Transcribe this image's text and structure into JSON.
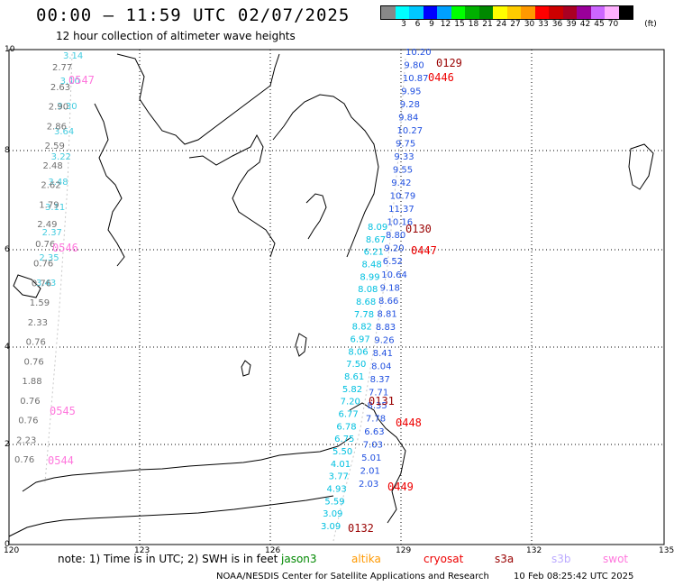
{
  "header": {
    "title": "00:00 – 11:59 UTC 02/07/2025",
    "subtitle": "12 hour collection of altimeter wave heights"
  },
  "legend": {
    "unit": "(ft)",
    "colors": [
      "#888888",
      "#00ffff",
      "#00c8ff",
      "#0000ff",
      "#00a0ff",
      "#00ff00",
      "#00b000",
      "#008800",
      "#ffff00",
      "#ffcc00",
      "#ff9900",
      "#ff0000",
      "#cc0000",
      "#aa0022",
      "#990099",
      "#cc66ff",
      "#ffb0ff",
      "#000000"
    ],
    "labels": [
      "3",
      "6",
      "9",
      "12",
      "15",
      "18",
      "21",
      "24",
      "27",
      "30",
      "33",
      "36",
      "39",
      "42",
      "45",
      "70"
    ]
  },
  "axes": {
    "lon_labels": [
      "120",
      "123",
      "126",
      "129",
      "132",
      "135"
    ],
    "lat_labels": [
      "10",
      "8",
      "6",
      "4",
      "2",
      "0"
    ]
  },
  "swh_series": [
    {
      "sat": "jason3-west",
      "color": "#44cce0",
      "values": [
        "3.14",
        "3.10",
        "3.30",
        "3.64",
        "3.22",
        "3.48",
        "3.11",
        "2.37",
        "2.35",
        "3.43"
      ]
    },
    {
      "sat": "jason3-west-grey",
      "color": "#707070",
      "values": [
        "2.77",
        "2.63",
        "2.90",
        "2.86",
        "2.59",
        "2.48",
        "2.62",
        "1.79",
        "2.49",
        "0.76",
        "0.76",
        "0.76",
        "1.59",
        "2.33",
        "0.76",
        "0.76",
        "1.88",
        "0.76",
        "0.76",
        "2.23",
        "0.76"
      ]
    },
    {
      "sat": "track-east-cyan",
      "color": "#00c0e0",
      "values": [
        "8.09",
        "8.67",
        "6.21",
        "8.48",
        "8.99",
        "8.08",
        "8.68",
        "7.78",
        "8.82",
        "6.97",
        "8.06",
        "7.50",
        "8.61",
        "5.82",
        "7.20",
        "6.77",
        "6.78",
        "6.75",
        "5.50",
        "4.01",
        "3.77",
        "4.93",
        "5.59",
        "3.09",
        "3.09"
      ]
    },
    {
      "sat": "track-east-blue",
      "color": "#2050e0",
      "values": [
        "10.20",
        "9.80",
        "10.87",
        "9.95",
        "9.28",
        "9.84",
        "10.27",
        "9.75",
        "9.33",
        "9.55",
        "9.42",
        "10.79",
        "11.37",
        "10.16",
        "8.80",
        "9.20",
        "6.52",
        "10.64",
        "9.18",
        "8.66",
        "8.81",
        "8.83",
        "9.26",
        "8.41",
        "8.04",
        "8.37",
        "7.71",
        "8.35",
        "7.78",
        "6.63",
        "7.03",
        "5.01",
        "2.01",
        "2.03"
      ]
    }
  ],
  "time_labels": [
    {
      "text": "0129",
      "color": "#990000"
    },
    {
      "text": "0446",
      "color": "#ee0000"
    },
    {
      "text": "0130",
      "color": "#990000"
    },
    {
      "text": "0447",
      "color": "#ee0000"
    },
    {
      "text": "0131",
      "color": "#990000"
    },
    {
      "text": "0448",
      "color": "#ee0000"
    },
    {
      "text": "0449",
      "color": "#ee0000"
    },
    {
      "text": "0132",
      "color": "#990000"
    },
    {
      "text": "0547",
      "color": "#ff77dd"
    },
    {
      "text": "0546",
      "color": "#ff77dd"
    },
    {
      "text": "0545",
      "color": "#ff77dd"
    },
    {
      "text": "0544",
      "color": "#ff77dd"
    }
  ],
  "note": {
    "text": "note:  1) Time is in UTC; 2) SWH is in feet"
  },
  "satellites": [
    {
      "name": "jason3",
      "color": "#008800"
    },
    {
      "name": "altika",
      "color": "#ff9900"
    },
    {
      "name": "cryosat",
      "color": "#ee0000"
    },
    {
      "name": "s3a",
      "color": "#990000"
    },
    {
      "name": "s3b",
      "color": "#bbaaff"
    },
    {
      "name": "swot",
      "color": "#ff77dd"
    }
  ],
  "footer": {
    "credit": "NOAA/NESDIS Center for Satellite Applications and Research",
    "timestamp": "10 Feb 08:25:42 UTC 2025"
  }
}
